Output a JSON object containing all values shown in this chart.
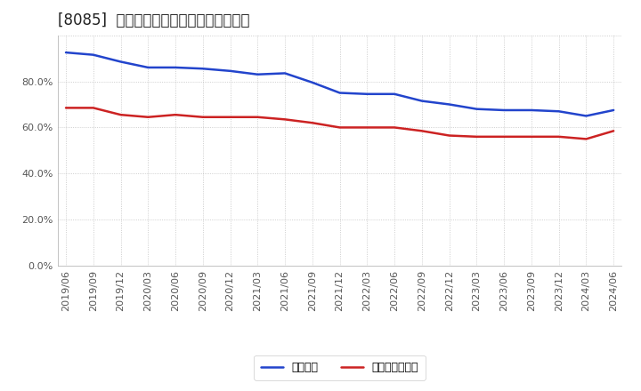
{
  "title": "[8085]  固定比率、固定長期適合率の推移",
  "x_labels": [
    "2019/06",
    "2019/09",
    "2019/12",
    "2020/03",
    "2020/06",
    "2020/09",
    "2020/12",
    "2021/03",
    "2021/06",
    "2021/09",
    "2021/12",
    "2022/03",
    "2022/06",
    "2022/09",
    "2022/12",
    "2023/03",
    "2023/06",
    "2023/09",
    "2023/12",
    "2024/03",
    "2024/06"
  ],
  "fixed_ratio": [
    92.5,
    91.5,
    88.5,
    86.0,
    86.0,
    85.5,
    84.5,
    83.0,
    83.5,
    79.5,
    75.0,
    74.5,
    74.5,
    71.5,
    70.0,
    68.0,
    67.5,
    67.5,
    67.0,
    65.0,
    67.5
  ],
  "fixed_long_ratio": [
    68.5,
    68.5,
    65.5,
    64.5,
    65.5,
    64.5,
    64.5,
    64.5,
    63.5,
    62.0,
    60.0,
    60.0,
    60.0,
    58.5,
    56.5,
    56.0,
    56.0,
    56.0,
    56.0,
    55.0,
    58.5
  ],
  "line_color_blue": "#2244cc",
  "line_color_red": "#cc2222",
  "bg_color": "#ffffff",
  "plot_bg_color": "#ffffff",
  "grid_color": "#aaaaaa",
  "ylim": [
    0,
    100
  ],
  "yticks": [
    0,
    20,
    40,
    60,
    80,
    100
  ],
  "ytick_labels": [
    "0.0%",
    "20.0%",
    "40.0%",
    "60.0%",
    "80.0%",
    ""
  ],
  "legend_blue": "固定比率",
  "legend_red": "固定長期適合率",
  "title_fontsize": 12,
  "tick_fontsize": 8,
  "legend_fontsize": 9
}
